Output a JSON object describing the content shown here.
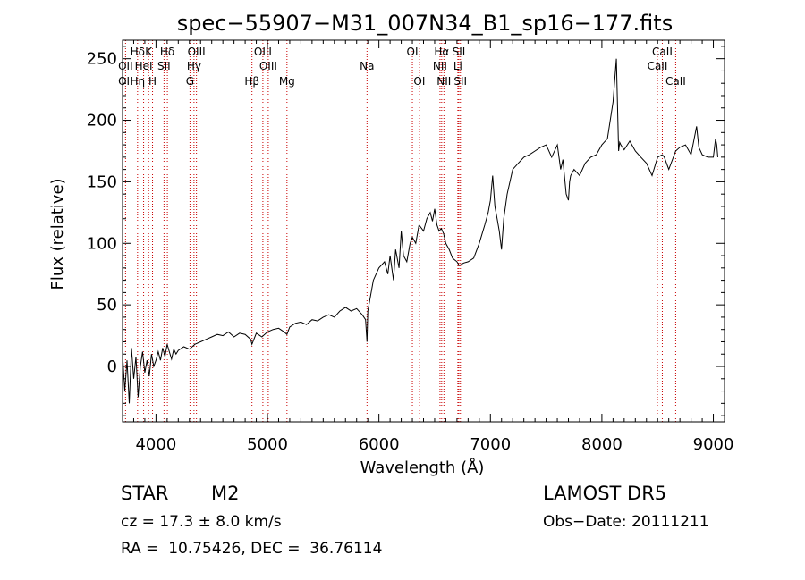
{
  "chart_data": {
    "type": "line",
    "title": "spec−55907−M31_007N34_B1_sp16−177.fits",
    "xlabel": "Wavelength (Å)",
    "ylabel": "Flux (relative)",
    "xlim": [
      3700,
      9100
    ],
    "ylim": [
      -45,
      265
    ],
    "x_ticks": [
      4000,
      5000,
      6000,
      7000,
      8000,
      9000
    ],
    "y_ticks": [
      0,
      50,
      100,
      150,
      200,
      250
    ],
    "grid": false,
    "line_color": "#000000",
    "marker_color": "#c80000",
    "series": [
      {
        "x": [
          3700,
          3720,
          3740,
          3760,
          3780,
          3800,
          3820,
          3840,
          3860,
          3880,
          3900,
          3920,
          3940,
          3960,
          3980,
          4000,
          4020,
          4040,
          4060,
          4080,
          4100,
          4120,
          4140,
          4160,
          4180,
          4200,
          4250,
          4300,
          4350,
          4400,
          4450,
          4500,
          4550,
          4600,
          4650,
          4700,
          4750,
          4800,
          4850,
          4861,
          4900,
          4950,
          5000,
          5050,
          5100,
          5150,
          5175,
          5200,
          5250,
          5300,
          5350,
          5400,
          5450,
          5500,
          5550,
          5600,
          5650,
          5700,
          5750,
          5800,
          5850,
          5880,
          5893,
          5900,
          5920,
          5950,
          6000,
          6050,
          6080,
          6100,
          6130,
          6150,
          6180,
          6200,
          6220,
          6250,
          6280,
          6300,
          6330,
          6360,
          6400,
          6430,
          6460,
          6480,
          6500,
          6520,
          6540,
          6560,
          6580,
          6600,
          6630,
          6660,
          6700,
          6720,
          6760,
          6800,
          6850,
          6900,
          6950,
          6980,
          7000,
          7020,
          7040,
          7060,
          7080,
          7100,
          7120,
          7150,
          7200,
          7250,
          7300,
          7350,
          7400,
          7450,
          7500,
          7550,
          7600,
          7630,
          7650,
          7680,
          7700,
          7710,
          7720,
          7750,
          7800,
          7850,
          7900,
          7950,
          8000,
          8050,
          8100,
          8130,
          8150,
          8160,
          8170,
          8200,
          8250,
          8300,
          8350,
          8400,
          8450,
          8500,
          8542,
          8560,
          8600,
          8662,
          8700,
          8750,
          8800,
          8850,
          8870,
          8900,
          8950,
          9000,
          9020,
          9030,
          9040
        ],
        "y": [
          10,
          -20,
          5,
          -30,
          15,
          -10,
          8,
          -25,
          0,
          12,
          -5,
          5,
          -8,
          10,
          0,
          5,
          12,
          5,
          15,
          8,
          18,
          12,
          6,
          14,
          10,
          13,
          16,
          14,
          18,
          20,
          22,
          24,
          26,
          25,
          28,
          24,
          27,
          26,
          22,
          18,
          27,
          24,
          28,
          30,
          31,
          28,
          26,
          32,
          35,
          36,
          34,
          38,
          37,
          40,
          42,
          40,
          45,
          48,
          45,
          47,
          42,
          38,
          20,
          45,
          55,
          70,
          80,
          85,
          75,
          90,
          70,
          95,
          80,
          110,
          90,
          85,
          100,
          105,
          100,
          115,
          110,
          120,
          125,
          118,
          128,
          115,
          110,
          112,
          108,
          100,
          95,
          88,
          85,
          82,
          84,
          85,
          88,
          100,
          115,
          125,
          135,
          155,
          130,
          120,
          110,
          95,
          120,
          140,
          160,
          165,
          170,
          172,
          175,
          178,
          180,
          170,
          180,
          160,
          168,
          140,
          135,
          150,
          155,
          160,
          155,
          165,
          170,
          172,
          180,
          185,
          215,
          250,
          175,
          182,
          180,
          176,
          183,
          175,
          170,
          165,
          155,
          170,
          172,
          170,
          160,
          175,
          178,
          180,
          172,
          195,
          178,
          172,
          170,
          170,
          185,
          180,
          170
        ]
      }
    ],
    "line_markers": [
      {
        "label": "Hδ",
        "x": 3835,
        "row": 0
      },
      {
        "label": "OII",
        "x": 3727,
        "row": 1
      },
      {
        "label": "OII",
        "x": 3727,
        "row": 2
      },
      {
        "label": "K",
        "x": 3934,
        "row": 0
      },
      {
        "label": "HeI",
        "x": 3889,
        "row": 1
      },
      {
        "label": "Hη",
        "x": 3835,
        "row": 2
      },
      {
        "label": "H",
        "x": 3969,
        "row": 2
      },
      {
        "label": "Hδ",
        "x": 4102,
        "row": 0
      },
      {
        "label": "SII",
        "x": 4072,
        "row": 1
      },
      {
        "label": "OIII",
        "x": 4363,
        "row": 0
      },
      {
        "label": "Hγ",
        "x": 4341,
        "row": 1
      },
      {
        "label": "G",
        "x": 4305,
        "row": 2
      },
      {
        "label": "Hβ",
        "x": 4861,
        "row": 2
      },
      {
        "label": "OIII",
        "x": 4959,
        "row": 0
      },
      {
        "label": "OIII",
        "x": 5007,
        "row": 1
      },
      {
        "label": "Mg",
        "x": 5175,
        "row": 2
      },
      {
        "label": "Na",
        "x": 5893,
        "row": 1
      },
      {
        "label": "OI",
        "x": 6300,
        "row": 0
      },
      {
        "label": "OI",
        "x": 6363,
        "row": 2
      },
      {
        "label": "Hα",
        "x": 6563,
        "row": 0
      },
      {
        "label": "NII",
        "x": 6548,
        "row": 1
      },
      {
        "label": "NII",
        "x": 6583,
        "row": 2
      },
      {
        "label": "SII",
        "x": 6717,
        "row": 0
      },
      {
        "label": "Li",
        "x": 6708,
        "row": 1
      },
      {
        "label": "SII",
        "x": 6731,
        "row": 2
      },
      {
        "label": "CaII",
        "x": 8542,
        "row": 0
      },
      {
        "label": "CaII",
        "x": 8498,
        "row": 1
      },
      {
        "label": "CaII",
        "x": 8662,
        "row": 2
      }
    ],
    "marker_line_x": [
      3727,
      3835,
      3889,
      3934,
      3969,
      4072,
      4102,
      4305,
      4341,
      4363,
      4861,
      4959,
      5007,
      5175,
      5893,
      6300,
      6363,
      6548,
      6563,
      6583,
      6708,
      6717,
      6731,
      8498,
      8542,
      8662
    ]
  },
  "info": {
    "object_class": "STAR",
    "subclass": "M2",
    "redshift": "cz = 17.3 ± 8.0 km/s",
    "coords": "RA =  10.75426, DEC =  36.76114",
    "survey": "LAMOST DR5",
    "obs_date": "Obs−Date: 20111211"
  }
}
